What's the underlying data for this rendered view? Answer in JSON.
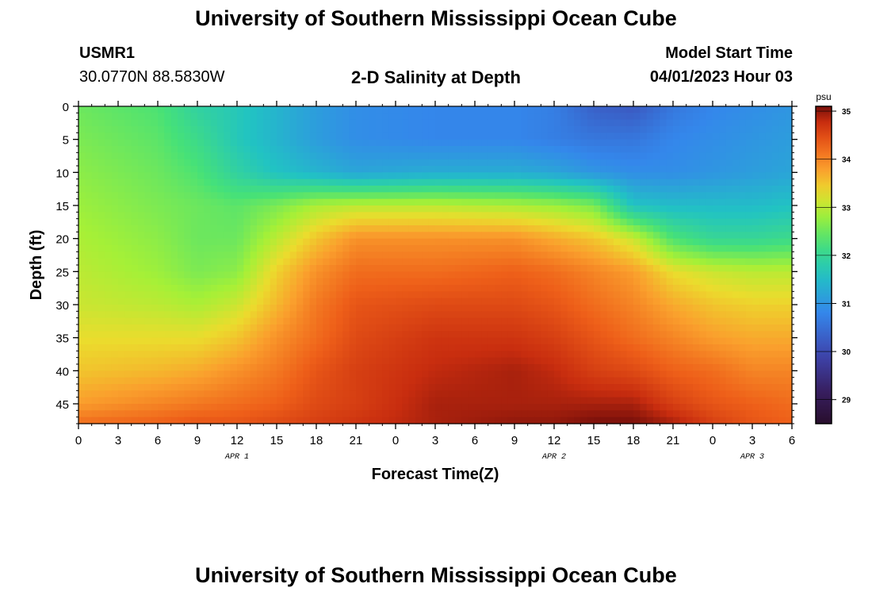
{
  "header": {
    "title": "University of Southern Mississippi Ocean Cube",
    "station_id": "USMR1",
    "station_coords": "30.0770N  88.5830W",
    "subtitle": "2-D Salinity at Depth",
    "model_start_label": "Model Start Time",
    "model_start_value": "04/01/2023 Hour 03",
    "footer_title": "University of Southern Mississippi Ocean Cube"
  },
  "chart_data": {
    "type": "heatmap",
    "title": "2-D Salinity at Depth",
    "xlabel": "Forecast Time(Z)",
    "ylabel": "Depth (ft)",
    "x_hours_range": [
      0,
      54
    ],
    "x_ticks": [
      {
        "hour": 0,
        "label": "0"
      },
      {
        "hour": 3,
        "label": "3"
      },
      {
        "hour": 6,
        "label": "6"
      },
      {
        "hour": 9,
        "label": "9"
      },
      {
        "hour": 12,
        "label": "12"
      },
      {
        "hour": 15,
        "label": "15"
      },
      {
        "hour": 18,
        "label": "18"
      },
      {
        "hour": 21,
        "label": "21"
      },
      {
        "hour": 24,
        "label": "0"
      },
      {
        "hour": 27,
        "label": "3"
      },
      {
        "hour": 30,
        "label": "6"
      },
      {
        "hour": 33,
        "label": "9"
      },
      {
        "hour": 36,
        "label": "12"
      },
      {
        "hour": 39,
        "label": "15"
      },
      {
        "hour": 42,
        "label": "18"
      },
      {
        "hour": 45,
        "label": "21"
      },
      {
        "hour": 48,
        "label": "0"
      },
      {
        "hour": 51,
        "label": "3"
      },
      {
        "hour": 54,
        "label": "6"
      }
    ],
    "date_labels": [
      {
        "hour": 12,
        "label": "APR 1"
      },
      {
        "hour": 36,
        "label": "APR 2"
      },
      {
        "hour": 51,
        "label": "APR 3"
      }
    ],
    "y_range": [
      0,
      48
    ],
    "y_ticks": [
      0,
      5,
      10,
      15,
      20,
      25,
      30,
      35,
      40,
      45
    ],
    "colorbar": {
      "unit": "psu",
      "range": [
        28.5,
        35.1
      ],
      "ticks": [
        29,
        30,
        31,
        32,
        33,
        34,
        35
      ]
    },
    "depths": [
      0,
      5,
      10,
      15,
      20,
      25,
      30,
      35,
      40,
      45,
      48
    ],
    "times": [
      0,
      6,
      9,
      12,
      15,
      18,
      21,
      27,
      33,
      36,
      39,
      42,
      45,
      48,
      51,
      54
    ],
    "salinity": [
      [
        32.5,
        32.3,
        31.9,
        31.7,
        31.4,
        31.1,
        30.9,
        30.8,
        30.8,
        30.7,
        30.3,
        30.2,
        30.6,
        30.8,
        30.9,
        31.0
      ],
      [
        32.6,
        32.4,
        32.1,
        31.7,
        31.4,
        31.1,
        30.9,
        30.8,
        30.8,
        30.7,
        30.6,
        30.6,
        30.8,
        30.9,
        31.0,
        31.1
      ],
      [
        32.7,
        32.5,
        32.3,
        31.9,
        31.6,
        31.4,
        31.2,
        31.3,
        31.3,
        31.2,
        31.0,
        30.9,
        30.9,
        31.0,
        31.1,
        31.2
      ],
      [
        32.8,
        32.6,
        32.5,
        32.4,
        32.6,
        32.9,
        33.0,
        33.0,
        32.9,
        32.8,
        32.6,
        31.6,
        31.5,
        31.5,
        31.5,
        31.6
      ],
      [
        32.9,
        32.7,
        32.5,
        32.5,
        33.0,
        33.5,
        33.9,
        33.9,
        33.9,
        33.7,
        33.5,
        33.1,
        32.3,
        32.0,
        32.0,
        32.1
      ],
      [
        33.0,
        32.8,
        32.6,
        32.7,
        33.4,
        33.9,
        34.2,
        34.2,
        34.3,
        34.2,
        34.0,
        33.8,
        33.3,
        33.1,
        33.0,
        33.0
      ],
      [
        33.1,
        33.0,
        32.9,
        33.1,
        33.6,
        34.1,
        34.4,
        34.5,
        34.5,
        34.4,
        34.2,
        34.0,
        33.7,
        33.5,
        33.4,
        33.4
      ],
      [
        33.3,
        33.3,
        33.3,
        33.5,
        33.9,
        34.2,
        34.5,
        34.7,
        34.7,
        34.6,
        34.4,
        34.2,
        34.0,
        33.8,
        33.7,
        33.7
      ],
      [
        33.5,
        33.6,
        33.7,
        33.9,
        34.1,
        34.4,
        34.6,
        34.8,
        34.9,
        34.8,
        34.6,
        34.5,
        34.3,
        34.2,
        34.0,
        34.0
      ],
      [
        33.8,
        34.0,
        34.1,
        34.2,
        34.3,
        34.5,
        34.6,
        34.9,
        34.9,
        34.9,
        34.9,
        34.9,
        34.6,
        34.4,
        34.3,
        34.2
      ],
      [
        34.2,
        34.3,
        34.4,
        34.4,
        34.5,
        34.6,
        34.7,
        34.9,
        35.0,
        35.0,
        35.1,
        35.1,
        34.9,
        34.6,
        34.4,
        34.3
      ]
    ]
  }
}
